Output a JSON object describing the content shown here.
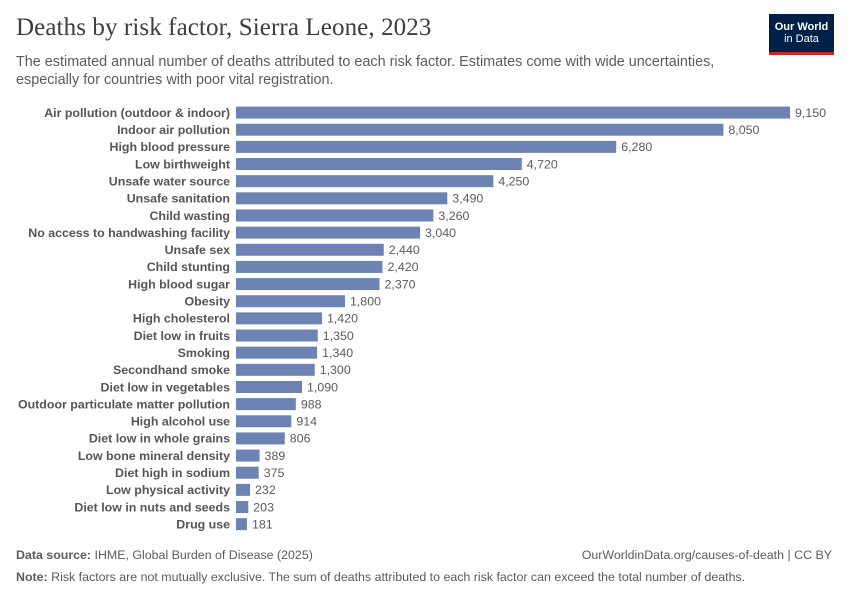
{
  "header": {
    "title": "Deaths by risk factor, Sierra Leone, 2023",
    "subtitle": "The estimated annual number of deaths attributed to each risk factor. Estimates come with wide uncertainties, especially for countries with poor vital registration."
  },
  "logo": {
    "line1": "Our World",
    "line2": "in Data",
    "bg_color": "#002147",
    "accent_color": "#ce261e"
  },
  "footer": {
    "source_label": "Data source:",
    "source_text": "IHME, Global Burden of Disease (2025)",
    "url_text": "OurWorldinData.org/causes-of-death | CC BY",
    "note_label": "Note:",
    "note_text": "Risk factors are not mutually exclusive. The sum of deaths attributed to each risk factor can exceed the total number of deaths."
  },
  "chart_data": {
    "type": "bar",
    "orientation": "horizontal",
    "bar_color": "#6d83b3",
    "categories": [
      "Air pollution (outdoor & indoor)",
      "Indoor air pollution",
      "High blood pressure",
      "Low birthweight",
      "Unsafe water source",
      "Unsafe sanitation",
      "Child wasting",
      "No access to handwashing facility",
      "Unsafe sex",
      "Child stunting",
      "High blood sugar",
      "Obesity",
      "High cholesterol",
      "Diet low in fruits",
      "Smoking",
      "Secondhand smoke",
      "Diet low in vegetables",
      "Outdoor particulate matter pollution",
      "High alcohol use",
      "Diet low in whole grains",
      "Low bone mineral density",
      "Diet high in sodium",
      "Low physical activity",
      "Diet low in nuts and seeds",
      "Drug use"
    ],
    "values": [
      9150,
      8050,
      6280,
      4720,
      4250,
      3490,
      3260,
      3040,
      2440,
      2420,
      2370,
      1800,
      1420,
      1350,
      1340,
      1300,
      1090,
      988,
      914,
      806,
      389,
      375,
      232,
      203,
      181
    ],
    "value_labels": [
      "9,150",
      "8,050",
      "6,280",
      "4,720",
      "4,250",
      "3,490",
      "3,260",
      "3,040",
      "2,440",
      "2,420",
      "2,370",
      "1,800",
      "1,420",
      "1,350",
      "1,340",
      "1,300",
      "1,090",
      "988",
      "914",
      "806",
      "389",
      "375",
      "232",
      "203",
      "181"
    ],
    "xlim": [
      0,
      9150
    ]
  }
}
